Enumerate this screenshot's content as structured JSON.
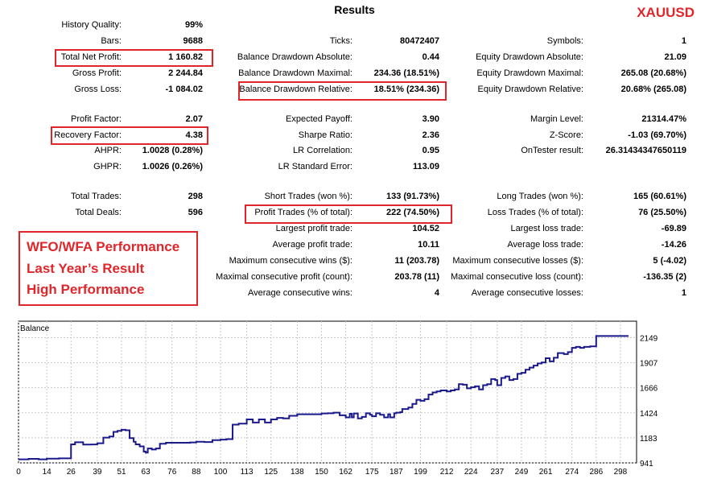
{
  "report_title": "Results",
  "symbol_badge": "XAUUSD",
  "col1": [
    {
      "label": "History Quality:",
      "value": "99%"
    },
    {
      "label": "Bars:",
      "value": "9688"
    },
    {
      "label": "Total Net Profit:",
      "value": "1 160.82"
    },
    {
      "label": "Gross Profit:",
      "value": "2 244.84"
    },
    {
      "label": "Gross Loss:",
      "value": "-1 084.02"
    },
    {
      "label": "Profit Factor:",
      "value": "2.07"
    },
    {
      "label": "Recovery Factor:",
      "value": "4.38"
    },
    {
      "label": "AHPR:",
      "value": "1.0028 (0.28%)"
    },
    {
      "label": "GHPR:",
      "value": "1.0026 (0.26%)"
    },
    {
      "label": "Total Trades:",
      "value": "298"
    },
    {
      "label": "Total Deals:",
      "value": "596"
    }
  ],
  "col2": [
    {
      "label": "Ticks:",
      "value": "80472407"
    },
    {
      "label": "Balance Drawdown Absolute:",
      "value": "0.44"
    },
    {
      "label": "Balance Drawdown Maximal:",
      "value": "234.36 (18.51%)"
    },
    {
      "label": "Balance Drawdown Relative:",
      "value": "18.51% (234.36)"
    },
    {
      "label": "Expected Payoff:",
      "value": "3.90"
    },
    {
      "label": "Sharpe Ratio:",
      "value": "2.36"
    },
    {
      "label": "LR Correlation:",
      "value": "0.95"
    },
    {
      "label": "LR Standard Error:",
      "value": "113.09"
    },
    {
      "label": "Short Trades (won %):",
      "value": "133 (91.73%)"
    },
    {
      "label": "Profit Trades (% of total):",
      "value": "222 (74.50%)"
    },
    {
      "label": "Largest profit trade:",
      "value": "104.52"
    },
    {
      "label": "Average profit trade:",
      "value": "10.11"
    },
    {
      "label": "Maximum consecutive wins ($):",
      "value": "11 (203.78)"
    },
    {
      "label": "Maximal consecutive profit (count):",
      "value": "203.78 (11)"
    },
    {
      "label": "Average consecutive wins:",
      "value": "4"
    }
  ],
  "col3": [
    {
      "label": "Symbols:",
      "value": "1"
    },
    {
      "label": "Equity Drawdown Absolute:",
      "value": "21.09"
    },
    {
      "label": "Equity Drawdown Maximal:",
      "value": "265.08 (20.68%)"
    },
    {
      "label": "Equity Drawdown Relative:",
      "value": "20.68% (265.08)"
    },
    {
      "label": "Margin Level:",
      "value": "21314.47%"
    },
    {
      "label": "Z-Score:",
      "value": "-1.03 (69.70%)"
    },
    {
      "label": "OnTester result:",
      "value": "26.31434347650119"
    },
    {
      "label": "Long Trades (won %):",
      "value": "165 (60.61%)"
    },
    {
      "label": "Loss Trades (% of total):",
      "value": "76 (25.50%)"
    },
    {
      "label": "Largest loss trade:",
      "value": "-69.89"
    },
    {
      "label": "Average loss trade:",
      "value": "-14.26"
    },
    {
      "label": "Maximum consecutive losses ($):",
      "value": "5 (-4.02)"
    },
    {
      "label": "Maximal consecutive loss (count):",
      "value": "-136.35 (2)"
    },
    {
      "label": "Average consecutive losses:",
      "value": "1"
    }
  ],
  "callout": {
    "line1": "WFO/WFA Performance",
    "line2": "Last  Year’s Result",
    "line3": "High Performance"
  },
  "highlight_color": "#e0262b",
  "chart_data": {
    "type": "line",
    "title": "Balance",
    "xlabel": "",
    "ylabel": "",
    "xlim": [
      0,
      306
    ],
    "ylim": [
      941,
      2230
    ],
    "x_ticks": [
      0,
      14,
      26,
      39,
      51,
      63,
      76,
      88,
      100,
      113,
      125,
      138,
      150,
      162,
      175,
      187,
      199,
      212,
      224,
      237,
      249,
      261,
      274,
      286,
      298
    ],
    "y_ticks": [
      941,
      1183,
      1424,
      1666,
      1907,
      2149
    ],
    "line_color": "#1a1a8c",
    "series": [
      {
        "x": [
          0,
          5,
          10,
          14,
          20,
          26,
          28,
          32,
          36,
          39,
          42,
          45,
          47,
          49,
          51,
          53,
          55,
          57,
          58,
          60,
          62,
          63,
          64,
          66,
          68,
          70,
          73,
          76,
          80,
          85,
          88,
          92,
          96,
          100,
          103,
          106,
          109,
          113,
          116,
          119,
          122,
          125,
          128,
          131,
          134,
          138,
          142,
          146,
          150,
          153,
          156,
          159,
          162,
          164,
          165,
          166,
          168,
          170,
          172,
          174,
          175,
          177,
          179,
          181,
          183,
          184,
          186,
          187,
          189,
          190,
          193,
          195,
          197,
          199,
          201,
          203,
          205,
          207,
          209,
          212,
          214,
          216,
          218,
          220,
          222,
          224,
          226,
          228,
          230,
          232,
          234,
          236,
          237,
          239,
          241,
          243,
          245,
          247,
          249,
          251,
          253,
          255,
          257,
          259,
          261,
          263,
          265,
          267,
          270,
          272,
          274,
          276,
          278,
          280,
          283,
          286,
          290,
          294,
          298,
          302
        ],
        "y": [
          975,
          980,
          975,
          982,
          985,
          1120,
          1140,
          1118,
          1119,
          1130,
          1185,
          1195,
          1240,
          1250,
          1260,
          1255,
          1180,
          1145,
          1120,
          1100,
          1050,
          1040,
          1080,
          1070,
          1080,
          1125,
          1135,
          1135,
          1135,
          1138,
          1145,
          1142,
          1160,
          1165,
          1170,
          1310,
          1320,
          1360,
          1330,
          1360,
          1330,
          1360,
          1375,
          1370,
          1395,
          1410,
          1410,
          1410,
          1418,
          1420,
          1425,
          1400,
          1380,
          1415,
          1380,
          1418,
          1370,
          1385,
          1420,
          1405,
          1390,
          1420,
          1405,
          1380,
          1410,
          1380,
          1420,
          1425,
          1430,
          1460,
          1475,
          1510,
          1550,
          1540,
          1555,
          1600,
          1620,
          1630,
          1640,
          1630,
          1640,
          1650,
          1700,
          1695,
          1660,
          1670,
          1680,
          1650,
          1690,
          1700,
          1750,
          1740,
          1690,
          1760,
          1775,
          1740,
          1750,
          1800,
          1810,
          1840,
          1860,
          1880,
          1900,
          1910,
          1950,
          1920,
          1955,
          2000,
          1990,
          2010,
          2050,
          2060,
          2050,
          2060,
          2065,
          2165,
          2165,
          2165,
          2165,
          2165
        ]
      }
    ]
  }
}
